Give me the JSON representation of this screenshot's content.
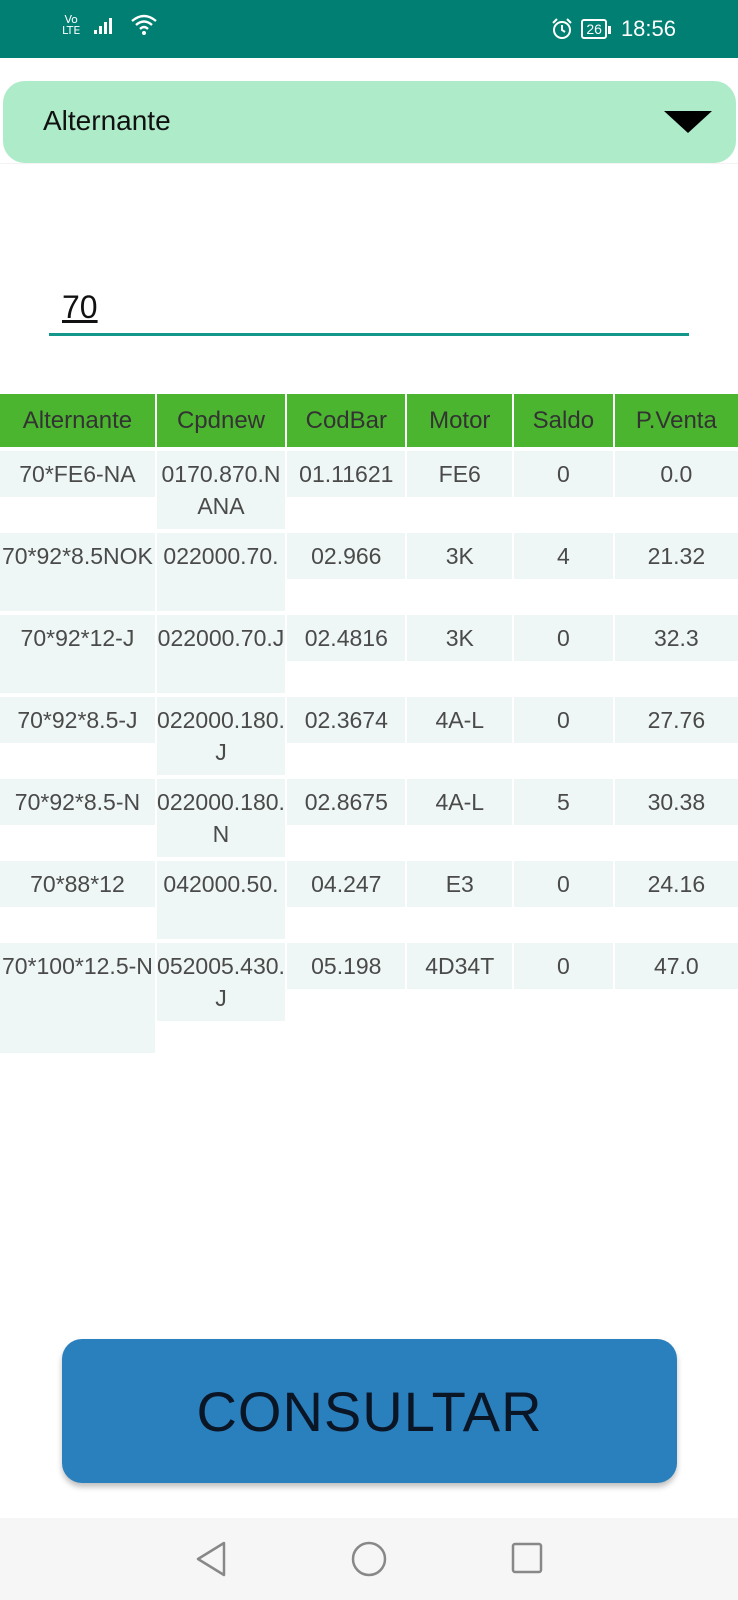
{
  "status_bar": {
    "network_top": "Vo",
    "network_bottom": "LTE",
    "battery_level": "26",
    "time": "18:56"
  },
  "spinner": {
    "selected": "Alternante"
  },
  "search": {
    "value": "70"
  },
  "table": {
    "headers": [
      "Alternante",
      "Cpdnew",
      "CodBar",
      "Motor",
      "Saldo",
      "P.Venta"
    ],
    "rows": [
      [
        "70*FE6-NA",
        "0170.870.NANA",
        "01.11621",
        "FE6",
        "0",
        "0.0"
      ],
      [
        "70*92*8.5NOK",
        "022000.70.",
        "02.966",
        "3K",
        "4",
        "21.32"
      ],
      [
        "70*92*12-J",
        "022000.70.J",
        "02.4816",
        "3K",
        "0",
        "32.3"
      ],
      [
        "70*92*8.5-J",
        "022000.180.J",
        "02.3674",
        "4A-L",
        "0",
        "27.76"
      ],
      [
        "70*92*8.5-N",
        "022000.180.N",
        "02.8675",
        "4A-L",
        "5",
        "30.38"
      ],
      [
        "70*88*12",
        "042000.50.",
        "04.247",
        "E3",
        "0",
        "24.16"
      ],
      [
        "70*100*12.5-N",
        "052005.430.J",
        "05.198",
        "4D34T",
        "0",
        "47.0"
      ]
    ]
  },
  "consult_button": {
    "label": "CONSULTAR"
  },
  "colors": {
    "status_bar": "#017f72",
    "spinner_bg": "#aeebc9",
    "table_header": "#4cb52f",
    "cell_bg": "#eef7f5",
    "button": "#2a7fbd"
  }
}
